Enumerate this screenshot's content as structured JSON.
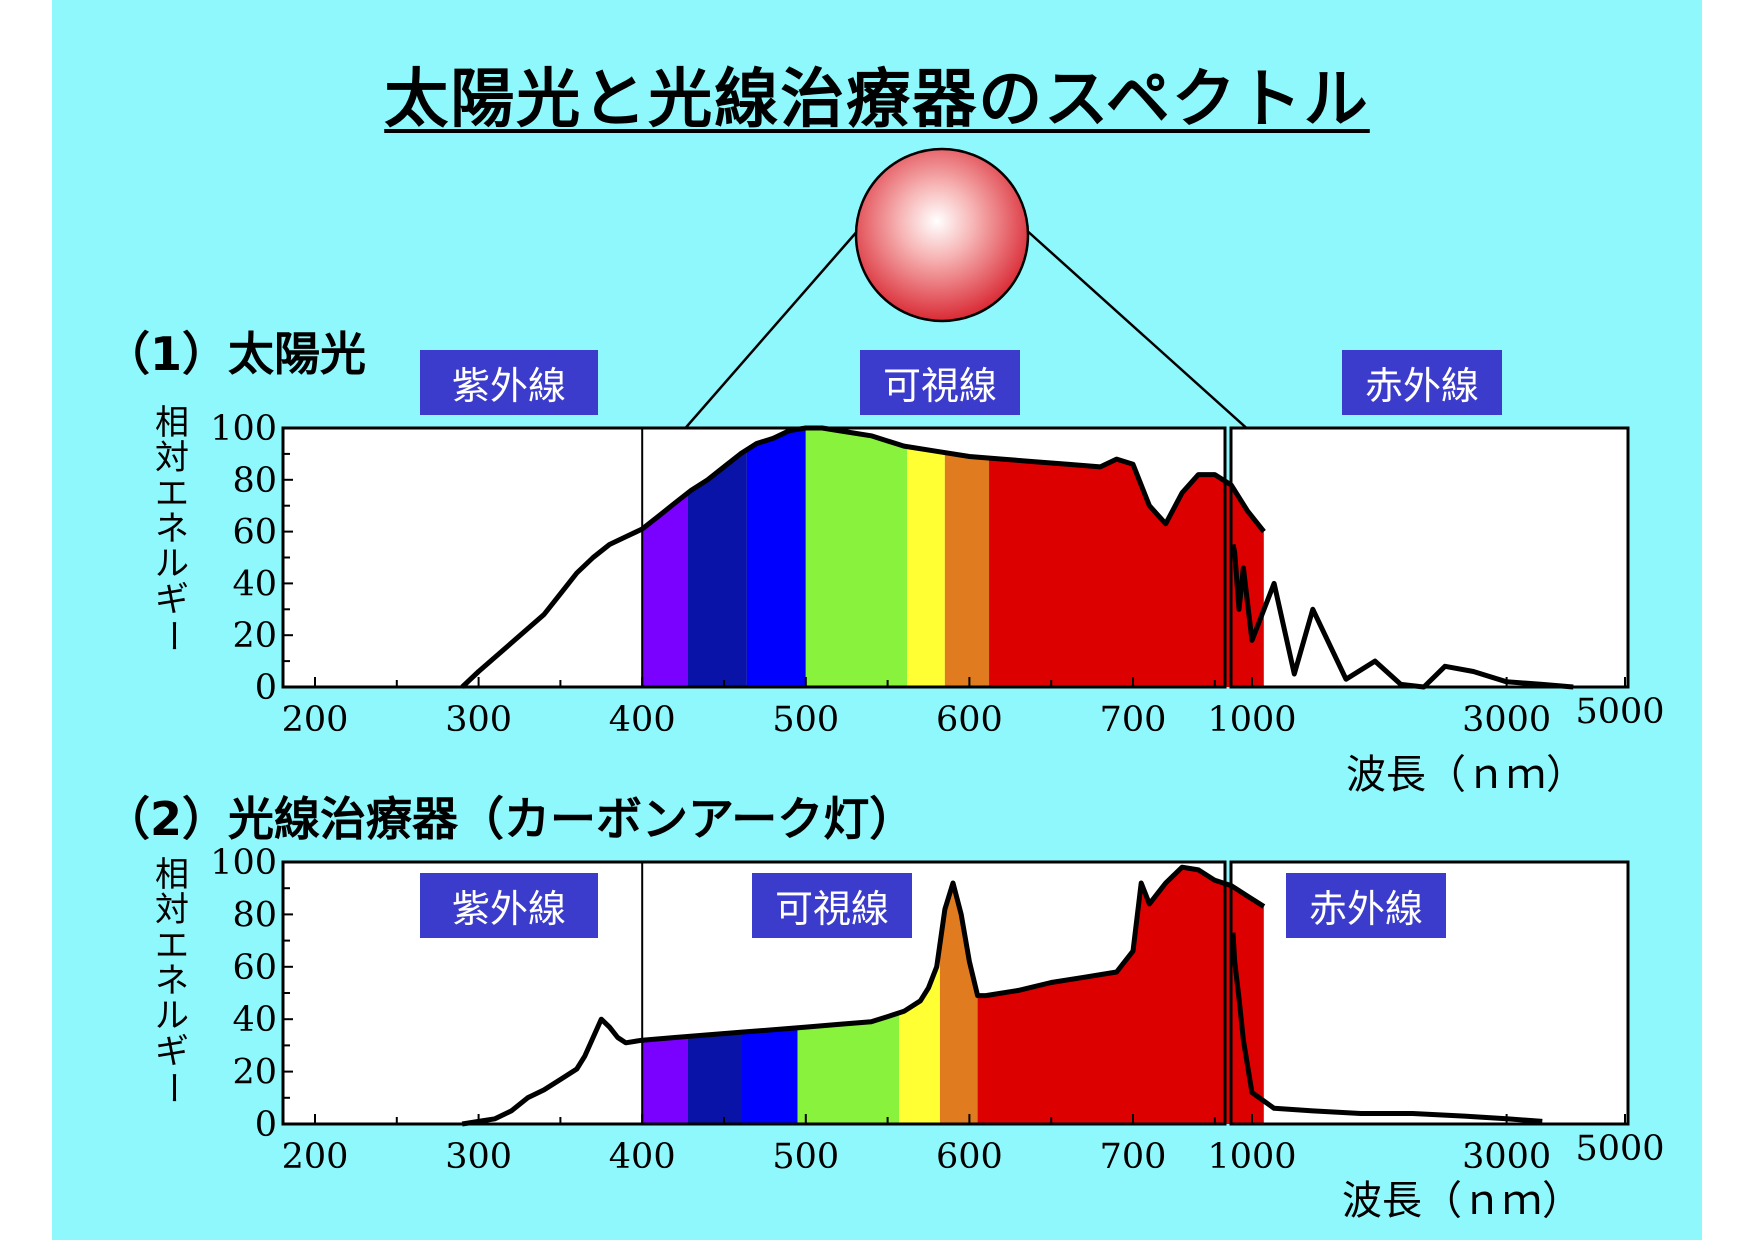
{
  "title": "太陽光と光線治療器のスペクトル",
  "chart_data": [
    {
      "type": "area",
      "title": "（1）太陽光",
      "ylabel": "相対エネルギー",
      "xlabel": "波長（ｎｍ）",
      "ylim": [
        0,
        100
      ],
      "yticks": [
        "0",
        "20",
        "40",
        "60",
        "80",
        "100"
      ],
      "xticks_linear": [
        "200",
        "300",
        "400",
        "500",
        "600",
        "700"
      ],
      "xticks_log": [
        "1000",
        "3000",
        "5000"
      ],
      "regions": [
        "紫外線",
        "可視線",
        "赤外線"
      ],
      "series_linear": {
        "x": [
          290,
          300,
          320,
          340,
          350,
          360,
          370,
          380,
          390,
          400,
          410,
          420,
          430,
          440,
          450,
          460,
          470,
          480,
          490,
          500,
          510,
          520,
          540,
          560,
          580,
          600,
          620,
          640,
          660,
          680,
          690,
          700,
          710,
          720,
          730,
          740,
          750,
          760,
          770,
          780
        ],
        "y": [
          0,
          6,
          17,
          28,
          36,
          44,
          50,
          55,
          58,
          61,
          66,
          71,
          76,
          80,
          85,
          90,
          94,
          96,
          99,
          100,
          100,
          99,
          97,
          93,
          91,
          89,
          88,
          87,
          86,
          85,
          88,
          86,
          70,
          63,
          75,
          82,
          82,
          78,
          68,
          60
        ]
      },
      "series_log": {
        "x": [
          780,
          800,
          850,
          900,
          1000,
          1100,
          1200,
          1300,
          1500,
          1700,
          1900,
          2100,
          2300,
          2600,
          3000,
          3500,
          4000
        ],
        "y": [
          55,
          52,
          30,
          46,
          18,
          40,
          5,
          30,
          3,
          10,
          1,
          0,
          8,
          6,
          2,
          1,
          0
        ]
      },
      "color_bands": [
        {
          "from": 400,
          "to": 428,
          "color": "#7a00ff"
        },
        {
          "from": 428,
          "to": 464,
          "color": "#0a13a8"
        },
        {
          "from": 464,
          "to": 500,
          "color": "#0000ff"
        },
        {
          "from": 500,
          "to": 562,
          "color": "#88f23c"
        },
        {
          "from": 562,
          "to": 585,
          "color": "#ffff33"
        },
        {
          "from": 585,
          "to": 612,
          "color": "#e07b20"
        },
        {
          "from": 612,
          "to": 780,
          "color": "#dd0000"
        }
      ]
    },
    {
      "type": "area",
      "title": "（2）光線治療器（カーボンアーク灯）",
      "ylabel": "相対エネルギー",
      "xlabel": "波長（ｎｍ）",
      "ylim": [
        0,
        100
      ],
      "yticks": [
        "0",
        "20",
        "40",
        "60",
        "80",
        "100"
      ],
      "xticks_linear": [
        "200",
        "300",
        "400",
        "500",
        "600",
        "700"
      ],
      "xticks_log": [
        "1000",
        "3000",
        "5000"
      ],
      "regions": [
        "紫外線",
        "可視線",
        "赤外線"
      ],
      "series_linear": {
        "x": [
          290,
          300,
          310,
          320,
          330,
          340,
          350,
          360,
          365,
          370,
          375,
          380,
          385,
          390,
          400,
          420,
          440,
          460,
          480,
          500,
          520,
          540,
          550,
          560,
          570,
          575,
          580,
          585,
          590,
          595,
          600,
          605,
          610,
          630,
          650,
          670,
          690,
          700,
          705,
          710,
          720,
          730,
          740,
          750,
          760,
          770,
          780
        ],
        "y": [
          0,
          1,
          2,
          5,
          10,
          13,
          17,
          21,
          26,
          33,
          40,
          37,
          33,
          31,
          32,
          33,
          34,
          35,
          36,
          37,
          38,
          39,
          41,
          43,
          47,
          52,
          60,
          82,
          92,
          80,
          62,
          49,
          49,
          51,
          54,
          56,
          58,
          66,
          92,
          84,
          92,
          98,
          97,
          93,
          91,
          87,
          83
        ]
      },
      "series_log": {
        "x": [
          780,
          800,
          850,
          900,
          1000,
          1100,
          1300,
          1600,
          2000,
          2500,
          3000,
          3500
        ],
        "y": [
          73,
          62,
          48,
          32,
          12,
          6,
          5,
          4,
          4,
          3,
          2,
          1
        ]
      },
      "color_bands": [
        {
          "from": 400,
          "to": 428,
          "color": "#7a00ff"
        },
        {
          "from": 428,
          "to": 461,
          "color": "#0a13a8"
        },
        {
          "from": 461,
          "to": 495,
          "color": "#0000ff"
        },
        {
          "from": 495,
          "to": 557,
          "color": "#88f23c"
        },
        {
          "from": 557,
          "to": 582,
          "color": "#ffff33"
        },
        {
          "from": 582,
          "to": 605,
          "color": "#e07b20"
        },
        {
          "from": 605,
          "to": 780,
          "color": "#dd0000"
        }
      ]
    }
  ]
}
